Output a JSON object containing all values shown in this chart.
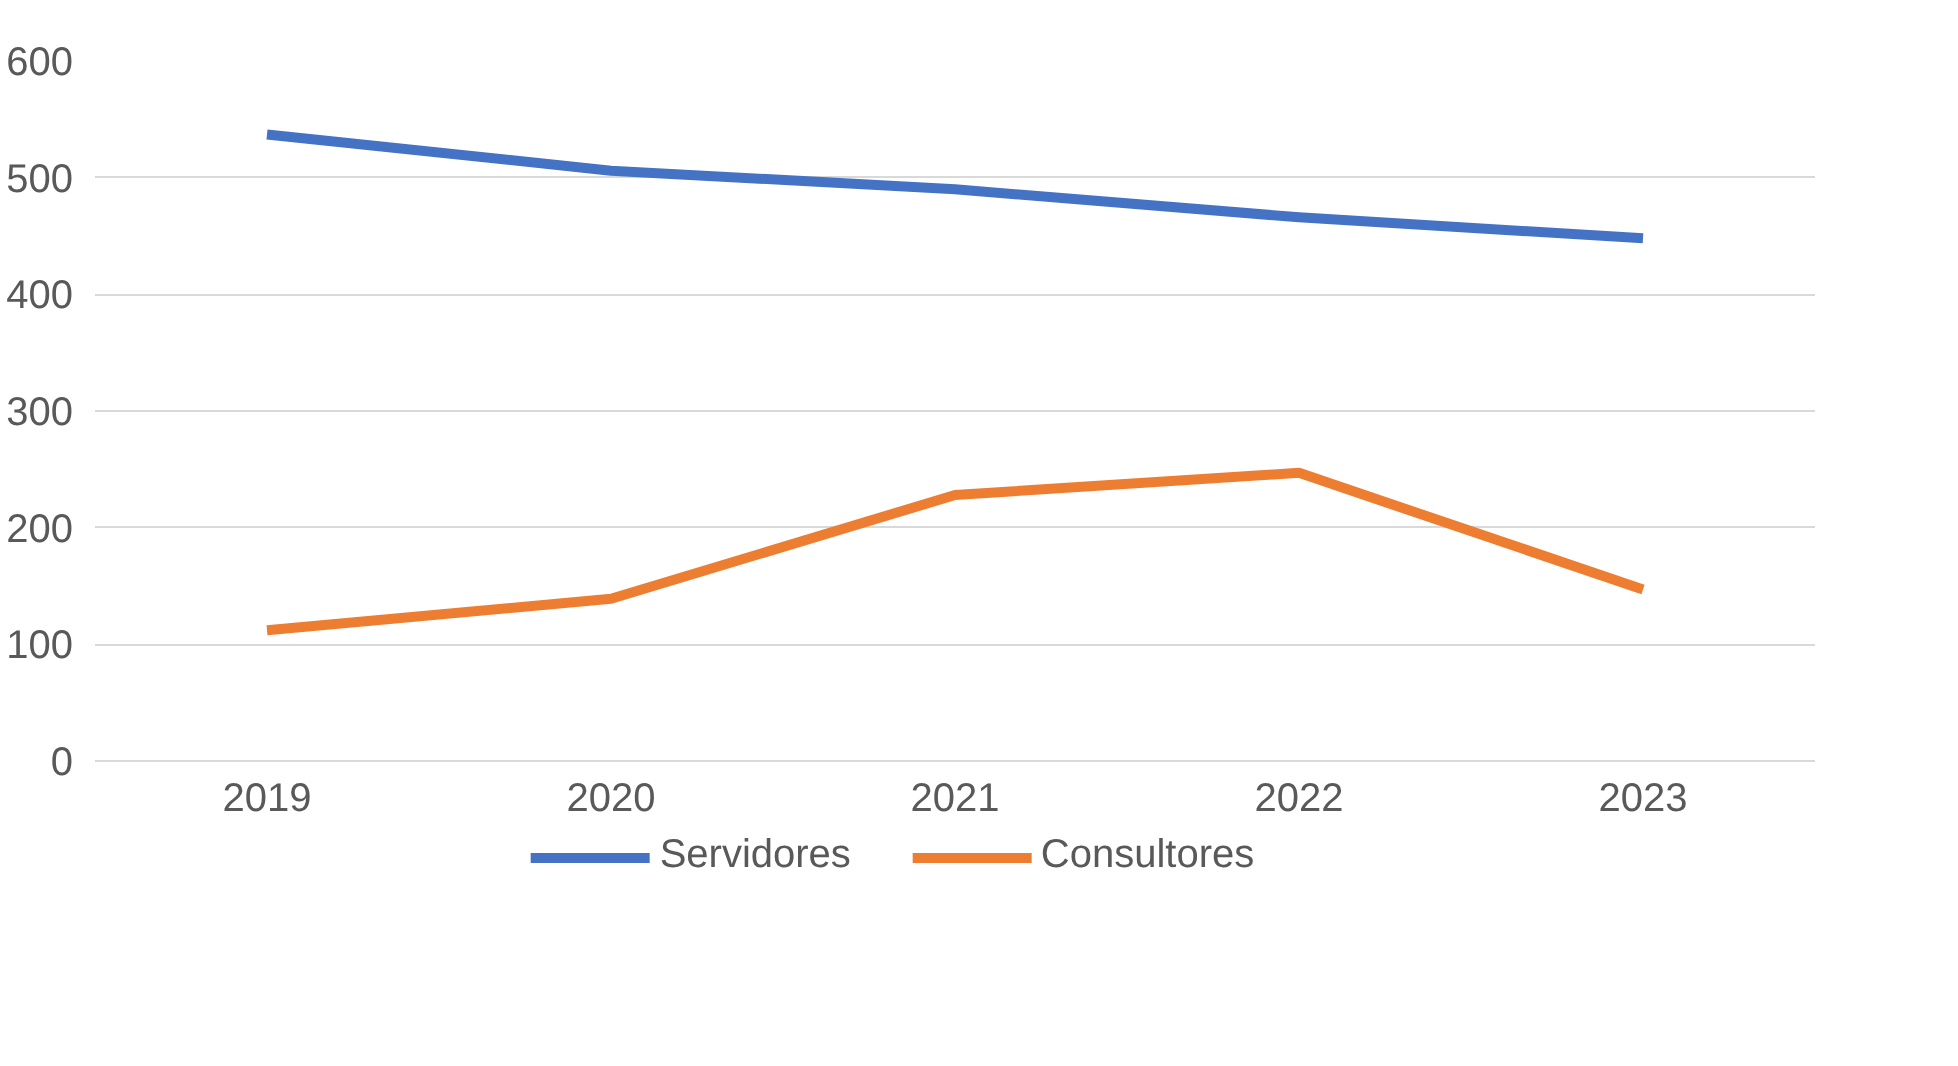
{
  "chart_data": {
    "type": "line",
    "categories": [
      "2019",
      "2020",
      "2021",
      "2022",
      "2023"
    ],
    "series": [
      {
        "name": "Servidores",
        "color": "#4472c4",
        "values": [
          537,
          506,
          490,
          466,
          448
        ]
      },
      {
        "name": "Consultores",
        "color": "#ed7d31",
        "values": [
          112,
          139,
          228,
          247,
          147
        ]
      }
    ],
    "ylim": [
      0,
      600
    ],
    "yticks": [
      0,
      100,
      200,
      300,
      400,
      500,
      600
    ],
    "grid": "y",
    "legend": "bottom",
    "marker": "none",
    "line_style": "solid"
  }
}
